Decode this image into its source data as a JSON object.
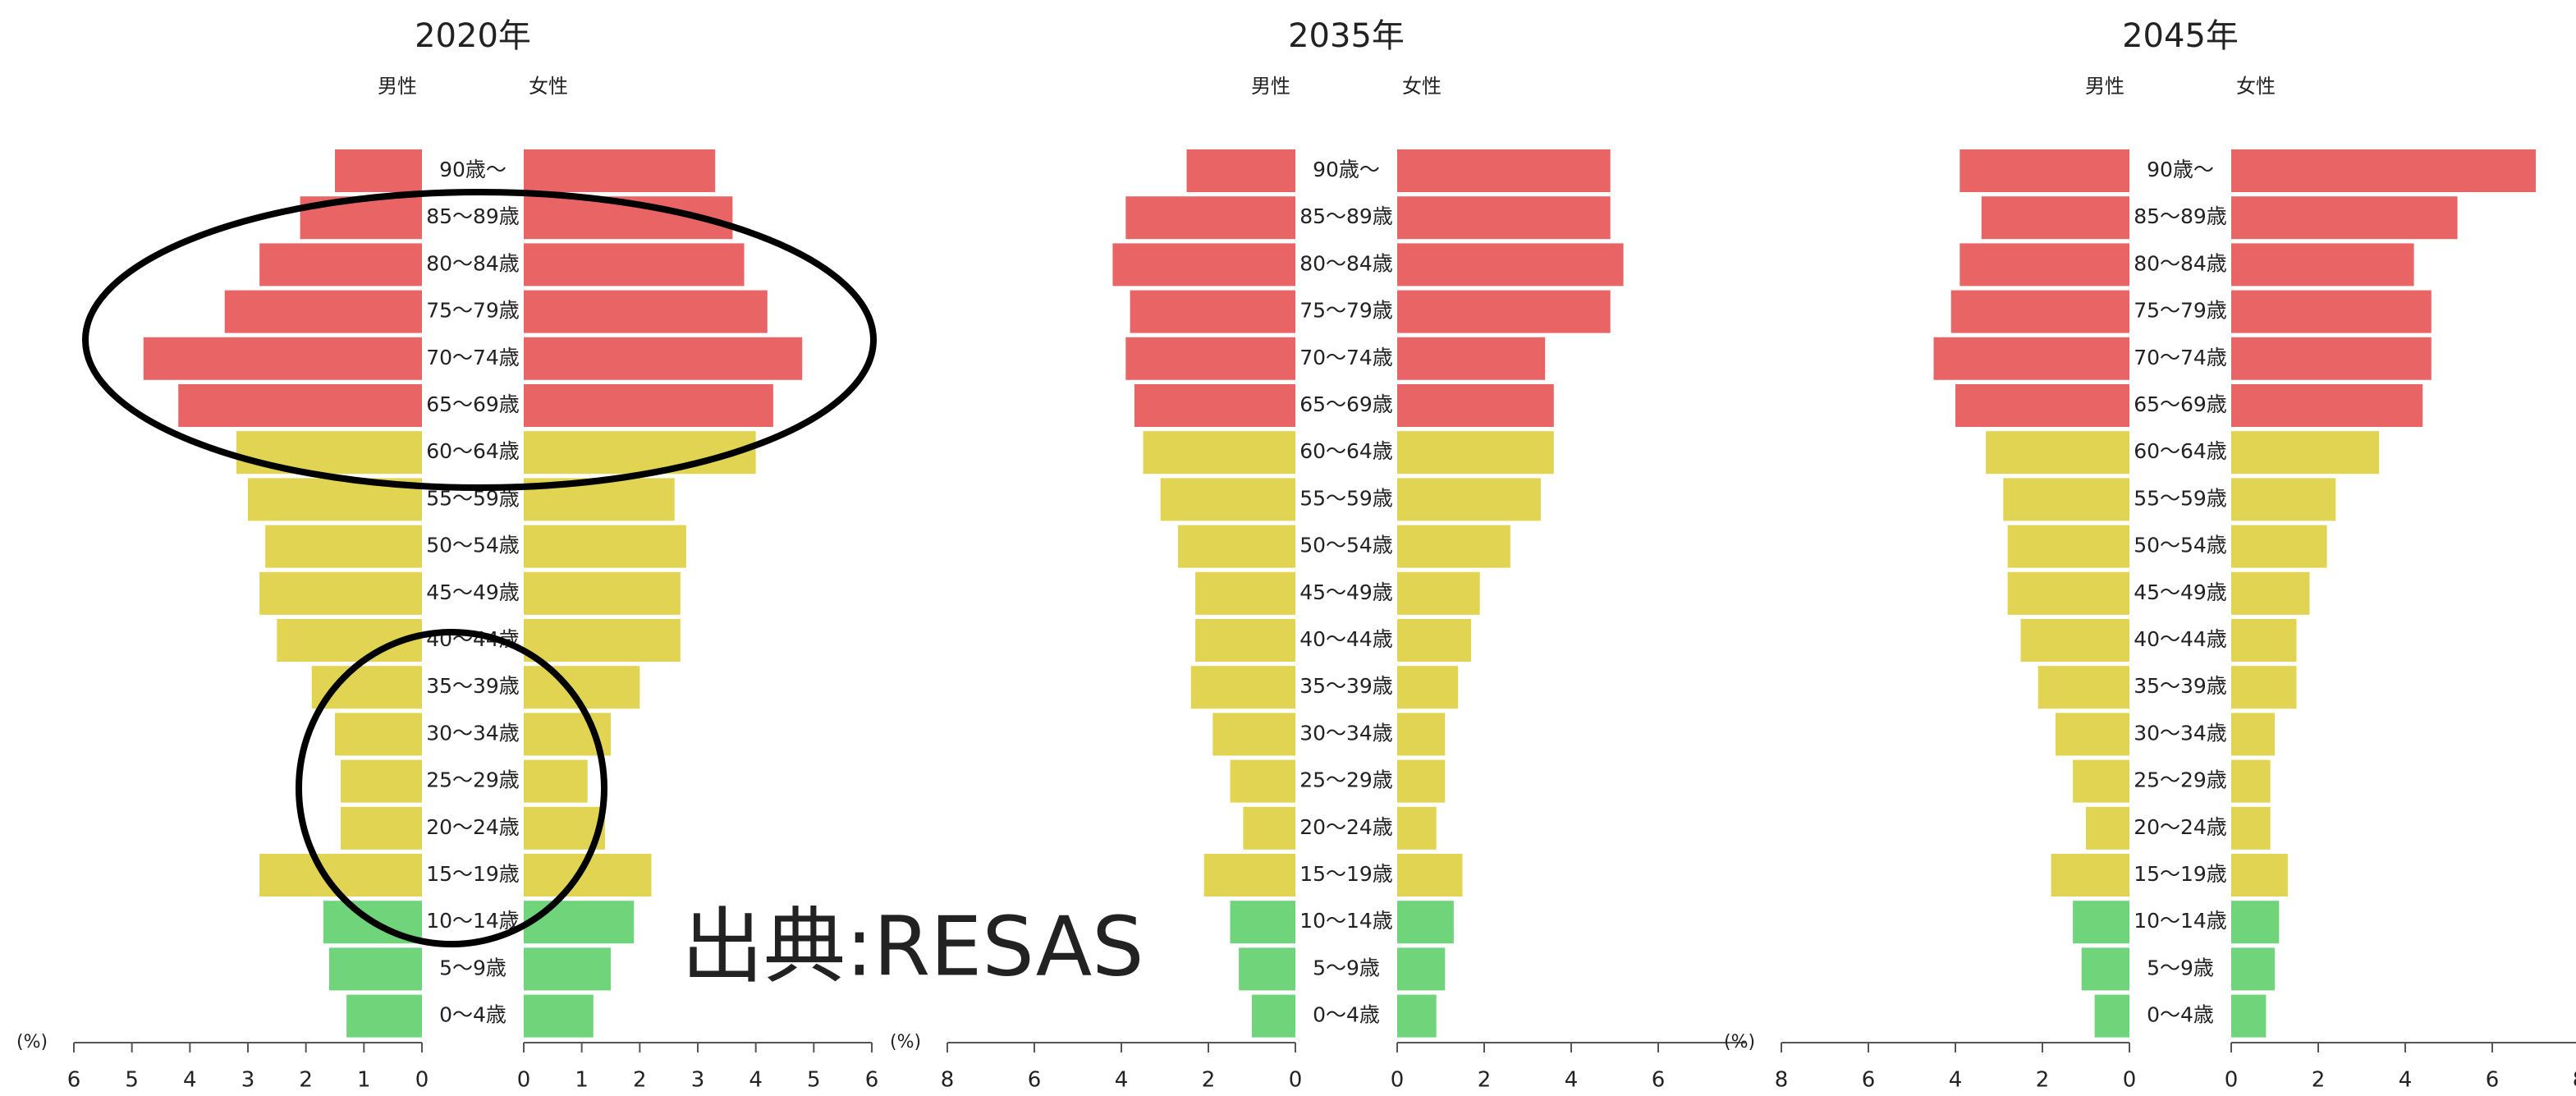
{
  "chart_data": [
    {
      "type": "pyramid",
      "title": "2020年",
      "x_label": "(%)",
      "categories": [
        "90歳〜",
        "85〜89歳",
        "80〜84歳",
        "75〜79歳",
        "70〜74歳",
        "65〜69歳",
        "60〜64歳",
        "55〜59歳",
        "50〜54歳",
        "45〜49歳",
        "40〜44歳",
        "35〜39歳",
        "30〜34歳",
        "25〜29歳",
        "20〜24歳",
        "15〜19歳",
        "10〜14歳",
        "5〜9歳",
        "0〜4歳"
      ],
      "colors": [
        "#e96565",
        "#e96565",
        "#e96565",
        "#e96565",
        "#e96565",
        "#e96565",
        "#e0d452",
        "#e0d452",
        "#e0d452",
        "#e0d452",
        "#e0d452",
        "#e0d452",
        "#e0d452",
        "#e0d452",
        "#e0d452",
        "#e0d452",
        "#6fd47a",
        "#6fd47a",
        "#6fd47a"
      ],
      "series": [
        {
          "name": "男性",
          "side": "left",
          "values": [
            1.5,
            2.1,
            2.8,
            3.4,
            4.8,
            4.2,
            3.2,
            3.0,
            2.7,
            2.8,
            2.5,
            1.9,
            1.5,
            1.4,
            1.4,
            2.8,
            1.7,
            1.6,
            1.3
          ]
        },
        {
          "name": "女性",
          "side": "right",
          "values": [
            3.3,
            3.6,
            3.8,
            4.2,
            4.8,
            4.3,
            4.0,
            2.6,
            2.8,
            2.7,
            2.7,
            2.0,
            1.5,
            1.1,
            1.4,
            2.2,
            1.9,
            1.5,
            1.2
          ]
        }
      ],
      "xlim": [
        0,
        6
      ],
      "left_xticks": [
        6,
        5,
        4,
        3,
        2,
        1,
        0
      ],
      "right_xticks": [
        0,
        1,
        2,
        3,
        4,
        5,
        6
      ]
    },
    {
      "type": "pyramid",
      "title": "2035年",
      "x_label": "(%)",
      "categories": [
        "90歳〜",
        "85〜89歳",
        "80〜84歳",
        "75〜79歳",
        "70〜74歳",
        "65〜69歳",
        "60〜64歳",
        "55〜59歳",
        "50〜54歳",
        "45〜49歳",
        "40〜44歳",
        "35〜39歳",
        "30〜34歳",
        "25〜29歳",
        "20〜24歳",
        "15〜19歳",
        "10〜14歳",
        "5〜9歳",
        "0〜4歳"
      ],
      "colors": [
        "#e96565",
        "#e96565",
        "#e96565",
        "#e96565",
        "#e96565",
        "#e96565",
        "#e0d452",
        "#e0d452",
        "#e0d452",
        "#e0d452",
        "#e0d452",
        "#e0d452",
        "#e0d452",
        "#e0d452",
        "#e0d452",
        "#e0d452",
        "#6fd47a",
        "#6fd47a",
        "#6fd47a"
      ],
      "series": [
        {
          "name": "男性",
          "side": "left",
          "values": [
            2.5,
            3.9,
            4.2,
            3.8,
            3.9,
            3.7,
            3.5,
            3.1,
            2.7,
            2.3,
            2.3,
            2.4,
            1.9,
            1.5,
            1.2,
            2.1,
            1.5,
            1.3,
            1.0
          ]
        },
        {
          "name": "女性",
          "side": "right",
          "values": [
            4.9,
            4.9,
            5.2,
            4.9,
            3.4,
            3.6,
            3.6,
            3.3,
            2.6,
            1.9,
            1.7,
            1.4,
            1.1,
            1.1,
            0.9,
            1.5,
            1.3,
            1.1,
            0.9
          ]
        }
      ],
      "xlim": [
        0,
        8
      ],
      "left_xticks": [
        8,
        6,
        4,
        2,
        0
      ],
      "right_xticks": [
        0,
        2,
        4,
        6
      ]
    },
    {
      "type": "pyramid",
      "title": "2045年",
      "x_label": "(%)",
      "categories": [
        "90歳〜",
        "85〜89歳",
        "80〜84歳",
        "75〜79歳",
        "70〜74歳",
        "65〜69歳",
        "60〜64歳",
        "55〜59歳",
        "50〜54歳",
        "45〜49歳",
        "40〜44歳",
        "35〜39歳",
        "30〜34歳",
        "25〜29歳",
        "20〜24歳",
        "15〜19歳",
        "10〜14歳",
        "5〜9歳",
        "0〜4歳"
      ],
      "colors": [
        "#e96565",
        "#e96565",
        "#e96565",
        "#e96565",
        "#e96565",
        "#e96565",
        "#e0d452",
        "#e0d452",
        "#e0d452",
        "#e0d452",
        "#e0d452",
        "#e0d452",
        "#e0d452",
        "#e0d452",
        "#e0d452",
        "#e0d452",
        "#6fd47a",
        "#6fd47a",
        "#6fd47a"
      ],
      "series": [
        {
          "name": "男性",
          "side": "left",
          "values": [
            3.9,
            3.4,
            3.9,
            4.1,
            4.5,
            4.0,
            3.3,
            2.9,
            2.8,
            2.8,
            2.5,
            2.1,
            1.7,
            1.3,
            1.0,
            1.8,
            1.3,
            1.1,
            0.8
          ]
        },
        {
          "name": "女性",
          "side": "right",
          "values": [
            7.0,
            5.2,
            4.2,
            4.6,
            4.6,
            4.4,
            3.4,
            2.4,
            2.2,
            1.8,
            1.5,
            1.5,
            1.0,
            0.9,
            0.9,
            1.3,
            1.1,
            1.0,
            0.8
          ]
        }
      ],
      "xlim": [
        0,
        8
      ],
      "left_xticks": [
        8,
        6,
        4,
        2,
        0
      ],
      "right_xticks": [
        0,
        2,
        4,
        6,
        8
      ]
    }
  ],
  "annotation": "出典:RESAS"
}
